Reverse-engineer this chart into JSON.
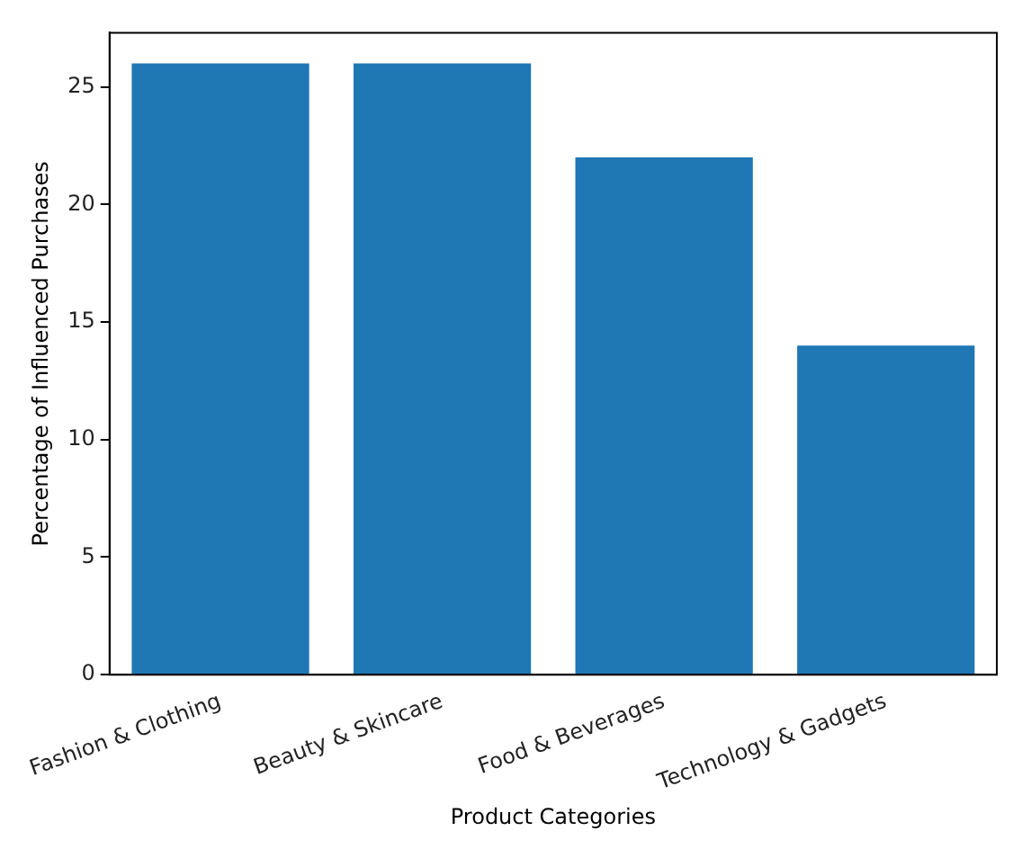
{
  "chart_data": {
    "type": "bar",
    "xlabel": "Product Categories",
    "ylabel": "Percentage of Influenced Purchases",
    "categories": [
      "Fashion & Clothing",
      "Beauty & Skincare",
      "Food & Beverages",
      "Technology & Gadgets"
    ],
    "values": [
      26,
      26,
      22,
      14
    ],
    "color": "#1f77b4",
    "ylim": [
      0,
      27.3
    ],
    "yticks": [
      0,
      5,
      10,
      15,
      20,
      25
    ],
    "grid": false,
    "legend": false
  }
}
